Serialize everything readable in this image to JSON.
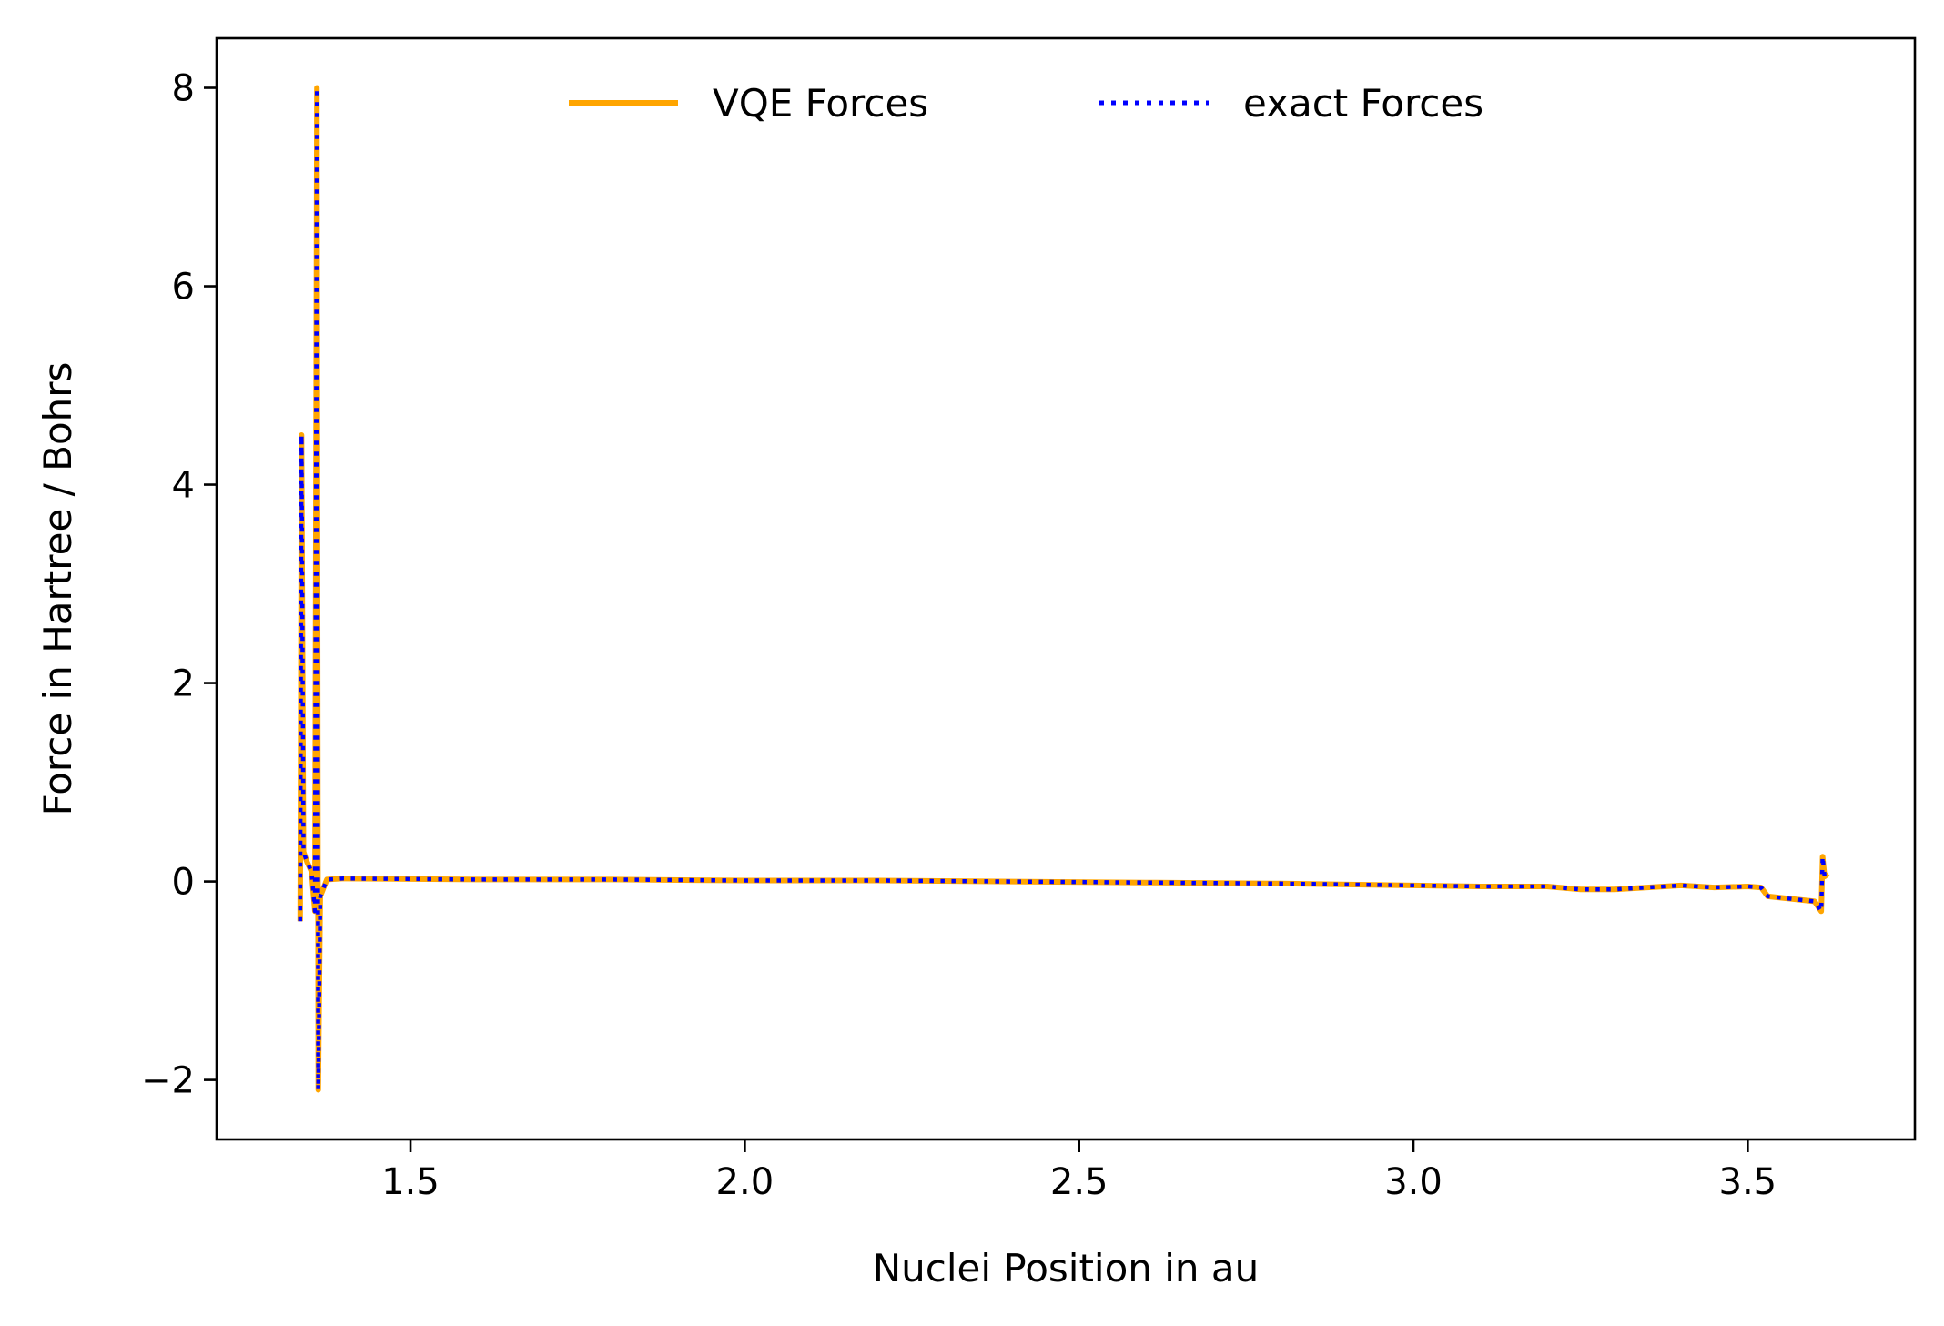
{
  "chart_data": {
    "type": "line",
    "title": "",
    "xlabel": "Nuclei Position in au",
    "ylabel": "Force in Hartree / Bohrs",
    "xlim": [
      1.21,
      3.75
    ],
    "ylim": [
      -2.6,
      8.5
    ],
    "xticks": [
      1.5,
      2.0,
      2.5,
      3.0,
      3.5
    ],
    "xtick_labels": [
      "1.5",
      "2.0",
      "2.5",
      "3.0",
      "3.5"
    ],
    "yticks": [
      -2,
      0,
      2,
      4,
      6,
      8
    ],
    "ytick_labels": [
      "−2",
      "0",
      "2",
      "4",
      "6",
      "8"
    ],
    "grid": false,
    "legend_position": "top-center",
    "series": [
      {
        "name": "VQE Forces",
        "color": "#ffa500",
        "style": "solid",
        "x": [
          1.335,
          1.337,
          1.34,
          1.345,
          1.352,
          1.357,
          1.36,
          1.362,
          1.365,
          1.375,
          1.4,
          1.6,
          1.8,
          2.0,
          2.2,
          2.4,
          2.6,
          2.8,
          3.0,
          3.1,
          3.2,
          3.25,
          3.3,
          3.35,
          3.4,
          3.45,
          3.5,
          3.52,
          3.53,
          3.6,
          3.61,
          3.612,
          3.615,
          3.62
        ],
        "y": [
          -0.4,
          4.5,
          0.3,
          0.2,
          0.1,
          -0.3,
          8.0,
          -2.1,
          -0.15,
          0.02,
          0.03,
          0.02,
          0.02,
          0.01,
          0.01,
          0.0,
          -0.01,
          -0.02,
          -0.04,
          -0.05,
          -0.05,
          -0.08,
          -0.08,
          -0.06,
          -0.04,
          -0.06,
          -0.05,
          -0.06,
          -0.15,
          -0.2,
          -0.3,
          0.25,
          0.05,
          0.08
        ]
      },
      {
        "name": "exact Forces",
        "color": "#0000ff",
        "style": "dotted",
        "x": [
          1.335,
          1.337,
          1.34,
          1.345,
          1.352,
          1.357,
          1.36,
          1.362,
          1.365,
          1.375,
          1.4,
          1.6,
          1.8,
          2.0,
          2.2,
          2.4,
          2.6,
          2.8,
          3.0,
          3.1,
          3.2,
          3.25,
          3.3,
          3.35,
          3.4,
          3.45,
          3.5,
          3.52,
          3.53,
          3.6,
          3.61,
          3.612,
          3.615,
          3.62
        ],
        "y": [
          -0.4,
          4.5,
          0.3,
          0.2,
          0.1,
          -0.3,
          8.0,
          -2.1,
          -0.15,
          0.02,
          0.03,
          0.02,
          0.02,
          0.01,
          0.01,
          0.0,
          -0.01,
          -0.02,
          -0.04,
          -0.05,
          -0.05,
          -0.08,
          -0.08,
          -0.06,
          -0.04,
          -0.06,
          -0.05,
          -0.06,
          -0.15,
          -0.2,
          -0.3,
          0.25,
          0.05,
          0.08
        ]
      }
    ]
  }
}
